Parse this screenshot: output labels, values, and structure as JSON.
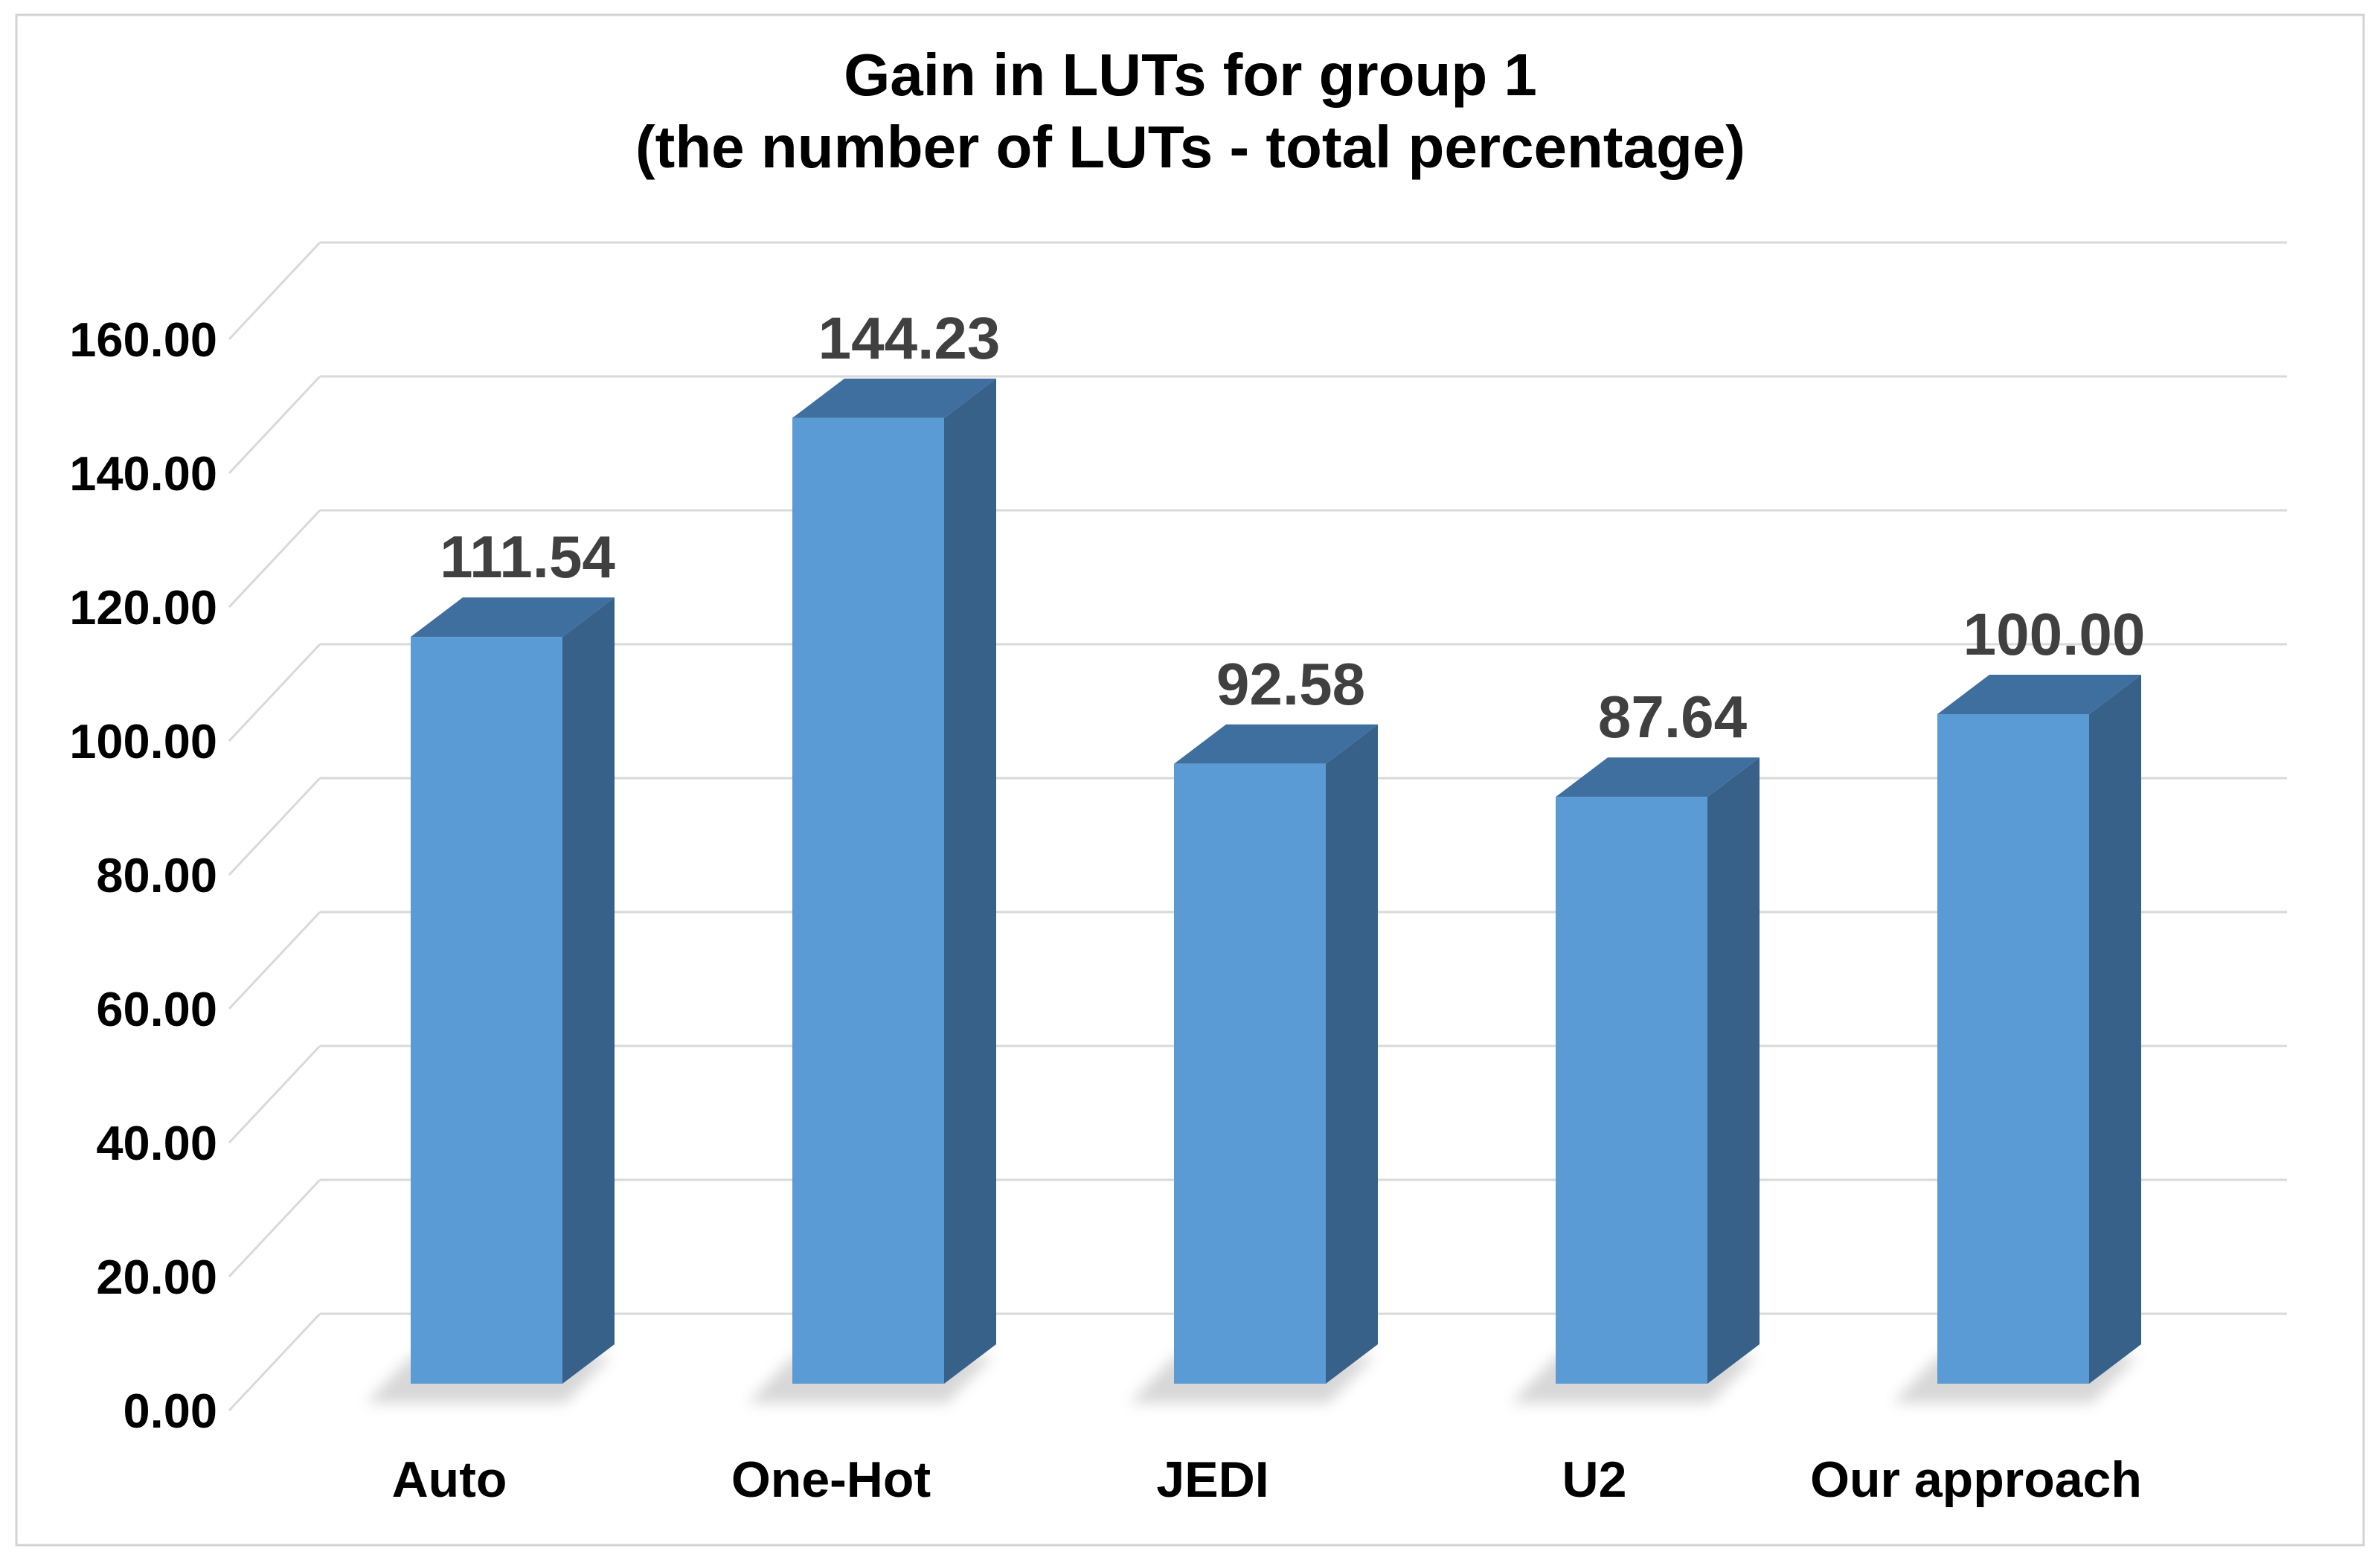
{
  "chart_data": {
    "type": "bar",
    "projection": "3d-column",
    "title_line1": "Gain in LUTs for group 1",
    "title_line2": "(the number of LUTs - total percentage)",
    "categories": [
      "Auto",
      "One-Hot",
      "JEDI",
      "U2",
      "Our approach"
    ],
    "series": [
      {
        "name": "Gain in LUTs",
        "values": [
          111.54,
          144.23,
          92.58,
          87.64,
          100.0
        ]
      }
    ],
    "data_labels": [
      "111.54",
      "144.23",
      "92.58",
      "87.64",
      "100.00"
    ],
    "xlabel": "",
    "ylabel": "",
    "ylim": [
      0,
      160
    ],
    "y_tick_step": 20,
    "y_tick_labels": [
      "0.00",
      "20.00",
      "40.00",
      "60.00",
      "80.00",
      "100.00",
      "120.00",
      "140.00",
      "160.00"
    ],
    "grid": true,
    "legend": false,
    "colors": {
      "bar_front": "#5B9BD5",
      "bar_top": "#3F6F9F",
      "bar_side": "#38618A",
      "gridline": "#D9D9D9",
      "shadow": "#6E6E6E",
      "data_label": "#404040",
      "axis_label": "#000000",
      "title": "#000000",
      "background": "#FFFFFF",
      "border": "#D3D3D3"
    }
  }
}
